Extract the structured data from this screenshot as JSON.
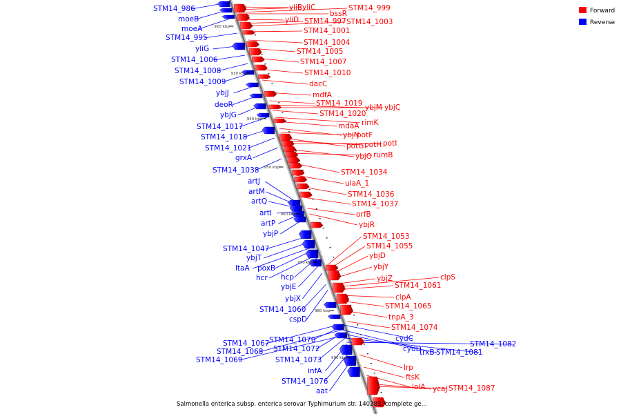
{
  "caption": "Salmonella enterica subsp. enterica serovar Typhimurium str. 14028S, complete ge...",
  "legend": [
    {
      "label": "Forward",
      "color": "#ff0000"
    },
    {
      "label": "Reverse",
      "color": "#0000ff"
    }
  ],
  "colors": {
    "forward": "#ff0000",
    "reverse": "#0000ff",
    "backbone": "#888888"
  },
  "kbp_ticks": [
    "920 kbp",
    "930 kbp",
    "940 kbp",
    "950 kbp",
    "960 kbp",
    "970 kbp",
    "980 kbp",
    "990 kbp"
  ],
  "reverse_labels": [
    "STM14_986",
    "moeB",
    "moeA",
    "STM14_995",
    "yliG",
    "STM14_1006",
    "STM14_1008",
    "STM14_1009",
    "ybjJ",
    "deoR",
    "ybjG",
    "STM14_1017",
    "STM14_1018",
    "STM14_1021",
    "grxA",
    "STM14_1038",
    "artJ",
    "artM",
    "artQ",
    "artI",
    "artP",
    "ybjP",
    "STM14_1047",
    "ybjT",
    "ltaA",
    "poxB",
    "hcr",
    "hcp",
    "ybjE",
    "ybjX",
    "STM14_1060",
    "cspD",
    "STM14_1067",
    "STM14_1070",
    "STM14_1068",
    "STM14_1072",
    "STM14_1069",
    "STM14_1073",
    "infA",
    "STM14_1076",
    "aat",
    "cydC",
    "cydD",
    "trxB",
    "STM14_1081",
    "STM14_1082"
  ],
  "forward_labels": [
    "yliB",
    "yliC",
    "bssR",
    "STM14_999",
    "yliD",
    "STM14_997",
    "STM14_1003",
    "STM14_1001",
    "STM14_1004",
    "STM14_1005",
    "STM14_1007",
    "STM14_1010",
    "dacC",
    "mdfA",
    "STM14_1019",
    "ybjM",
    "ybjC",
    "STM14_1020",
    "rimK",
    "mdaA",
    "ybjN",
    "potF",
    "potG",
    "potH",
    "potI",
    "ybjO",
    "rumB",
    "STM14_1034",
    "ulaA_1",
    "STM14_1036",
    "STM14_1037",
    "orfB",
    "ybjR",
    "STM14_1053",
    "STM14_1055",
    "ybjD",
    "ybjY",
    "ybjZ",
    "STM14_1061",
    "clpS",
    "clpA",
    "STM14_1065",
    "tnpA_3",
    "STM14_1074",
    "lrp",
    "ftsK",
    "lolA",
    "ycaJ",
    "STM14_1087"
  ]
}
